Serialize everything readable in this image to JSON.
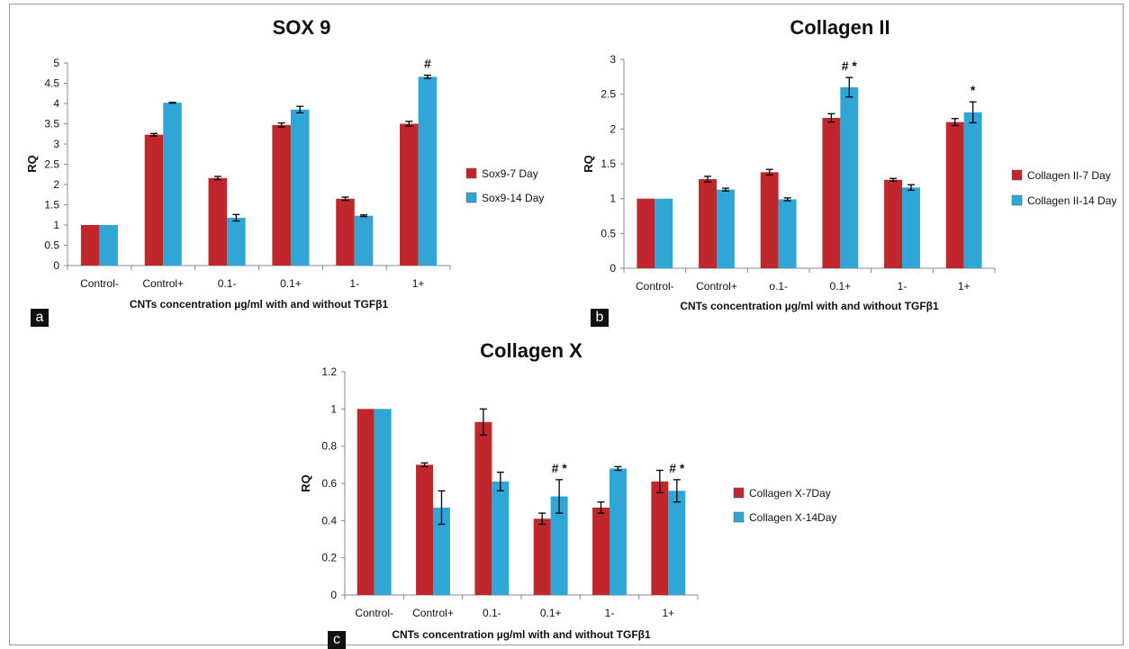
{
  "colors": {
    "series_red": "#c0272d",
    "series_blue": "#2fa6d6",
    "axis": "#888888",
    "text": "#111111"
  },
  "panels": [
    {
      "label": "a"
    },
    {
      "label": "b"
    },
    {
      "label": "c"
    }
  ],
  "chart_data": [
    {
      "type": "bar",
      "title": "SOX 9",
      "xlabel": "CNTs concentration µg/ml with and without TGFβ1",
      "ylabel": "RQ",
      "ylim": [
        0,
        5
      ],
      "yticks": [
        "0",
        "0.5",
        "1",
        "1.5",
        "2",
        "2.5",
        "3",
        "3.5",
        "4",
        "4.5",
        "5"
      ],
      "categories": [
        "Control-",
        "Control+",
        "0.1-",
        "0.1+",
        "1-",
        "1+"
      ],
      "series": [
        {
          "name": "Sox9-7 Day",
          "values": [
            1.0,
            3.23,
            2.16,
            3.47,
            1.65,
            3.5
          ],
          "errors": [
            0.0,
            0.03,
            0.04,
            0.05,
            0.04,
            0.06
          ]
        },
        {
          "name": "Sox9-14 Day",
          "values": [
            1.0,
            4.02,
            1.18,
            3.85,
            1.23,
            4.66
          ],
          "errors": [
            0.0,
            0.01,
            0.08,
            0.08,
            0.02,
            0.04
          ]
        }
      ],
      "annotations": [
        {
          "category": "1+",
          "series": 1,
          "text": "#"
        }
      ],
      "legend": "right",
      "grid": false
    },
    {
      "type": "bar",
      "title": "Collagen II",
      "xlabel": "CNTs concentration µg/ml with and without TGFβ1",
      "ylabel": "RQ",
      "ylim": [
        0,
        3
      ],
      "yticks": [
        "0",
        "0.5",
        "1",
        "1.5",
        "2",
        "2.5",
        "3"
      ],
      "categories": [
        "Control-",
        "Control+",
        "o.1-",
        "0.1+",
        "1-",
        "1+"
      ],
      "series": [
        {
          "name": "Collagen II-7 Day",
          "values": [
            1.0,
            1.28,
            1.38,
            2.16,
            1.27,
            2.1
          ],
          "errors": [
            0.0,
            0.04,
            0.04,
            0.06,
            0.02,
            0.05
          ]
        },
        {
          "name": "Collagen II-14 Day",
          "values": [
            1.0,
            1.13,
            0.99,
            2.6,
            1.16,
            2.24
          ],
          "errors": [
            0.0,
            0.02,
            0.02,
            0.14,
            0.04,
            0.15
          ]
        }
      ],
      "annotations": [
        {
          "category": "0.1+",
          "series": 1,
          "text": "# *"
        },
        {
          "category": "1+",
          "series": 1,
          "text": "*"
        }
      ],
      "legend": "right",
      "grid": false
    },
    {
      "type": "bar",
      "title": "Collagen X",
      "xlabel": "CNTs concentration µg/ml with and without TGFβ1",
      "ylabel": "RQ",
      "ylim": [
        0,
        1.2
      ],
      "yticks": [
        "0",
        "0.2",
        "0.4",
        "0.6",
        "0.8",
        "1",
        "1.2"
      ],
      "categories": [
        "Control-",
        "Control+",
        "0.1-",
        "0.1+",
        "1-",
        "1+"
      ],
      "series": [
        {
          "name": "Collagen X-7Day",
          "values": [
            1.0,
            0.7,
            0.93,
            0.41,
            0.47,
            0.61
          ],
          "errors": [
            0.0,
            0.01,
            0.07,
            0.03,
            0.03,
            0.06
          ]
        },
        {
          "name": "Collagen X-14Day",
          "values": [
            1.0,
            0.47,
            0.61,
            0.53,
            0.68,
            0.56
          ],
          "errors": [
            0.0,
            0.09,
            0.05,
            0.09,
            0.01,
            0.06
          ]
        }
      ],
      "annotations": [
        {
          "category": "0.1+",
          "series": 1,
          "text": "# *"
        },
        {
          "category": "1+",
          "series": 1,
          "text": "# *"
        }
      ],
      "legend": "right",
      "grid": false
    }
  ]
}
